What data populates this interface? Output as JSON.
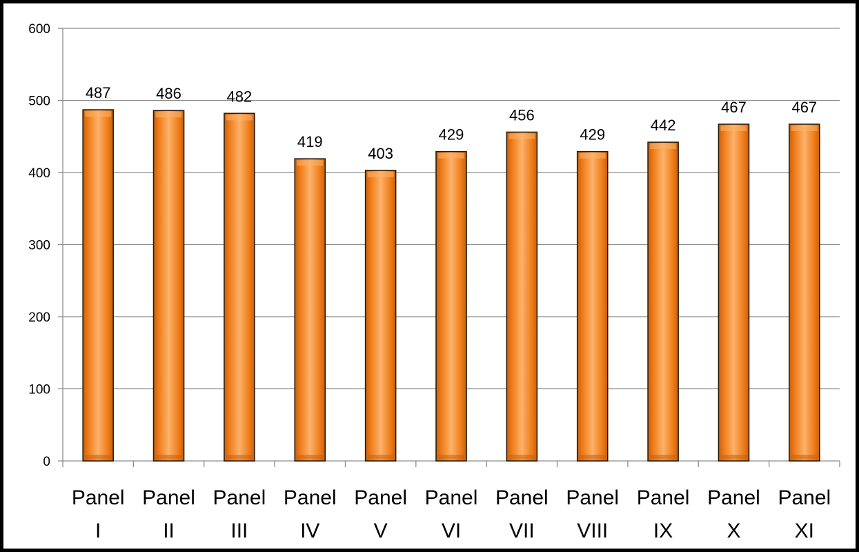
{
  "chart_data": {
    "type": "bar",
    "categories": [
      [
        "Panel",
        "I"
      ],
      [
        "Panel",
        "II"
      ],
      [
        "Panel",
        "III"
      ],
      [
        "Panel",
        "IV"
      ],
      [
        "Panel",
        "V"
      ],
      [
        "Panel",
        "VI"
      ],
      [
        "Panel",
        "VII"
      ],
      [
        "Panel",
        "VIII"
      ],
      [
        "Panel",
        "IX"
      ],
      [
        "Panel",
        "X"
      ],
      [
        "Panel",
        "XI"
      ]
    ],
    "values": [
      487,
      486,
      482,
      419,
      403,
      429,
      456,
      429,
      442,
      467,
      467
    ],
    "ylim": [
      0,
      600
    ],
    "yticks": [
      0,
      100,
      200,
      300,
      400,
      500,
      600
    ],
    "grid": true,
    "legend": "none",
    "colors": {
      "bar_fill": "#f07d1a",
      "bar_light": "#fbb26a",
      "bar_dark": "#c9600c",
      "bar_edge": "#2b1a0a",
      "grid": "#8c8c8c",
      "axis": "#8c8c8c",
      "frame": "#000000"
    }
  }
}
